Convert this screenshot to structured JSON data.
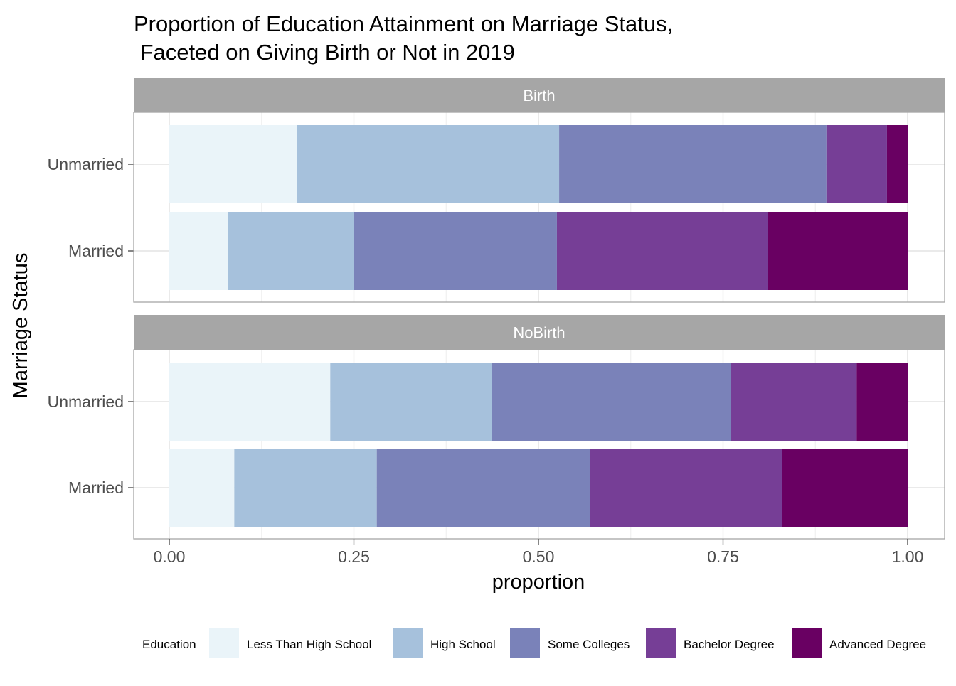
{
  "chart_data": {
    "type": "bar",
    "orientation": "horizontal",
    "stacked": "proportion",
    "title_line1": "Proportion of Education Attainment on Marriage Status,",
    "title_line2": " Faceted on Giving Birth or Not in 2019",
    "xlabel": "proportion",
    "ylabel": "Marriage Status",
    "xlim": [
      0,
      1
    ],
    "x_ticks": [
      "0.00",
      "0.25",
      "0.50",
      "0.75",
      "1.00"
    ],
    "x_tick_values": [
      0,
      0.25,
      0.5,
      0.75,
      1.0
    ],
    "categories": [
      "Unmarried",
      "Married"
    ],
    "grid": true,
    "legend": {
      "title": "Education",
      "placement": "bottom",
      "entries": [
        "Less Than High School",
        "High School",
        "Some Colleges",
        "Bachelor Degree",
        "Advanced Degree"
      ],
      "colors": [
        "#EAF4F9",
        "#A6C1DC",
        "#7A82B9",
        "#763E96",
        "#690062"
      ]
    },
    "facets": [
      {
        "name": "Birth",
        "rows": [
          {
            "category": "Unmarried",
            "values": [
              0.173,
              0.355,
              0.362,
              0.082,
              0.028
            ]
          },
          {
            "category": "Married",
            "values": [
              0.079,
              0.171,
              0.275,
              0.286,
              0.189
            ]
          }
        ]
      },
      {
        "name": "NoBirth",
        "rows": [
          {
            "category": "Unmarried",
            "values": [
              0.218,
              0.219,
              0.324,
              0.17,
              0.069
            ]
          },
          {
            "category": "Married",
            "values": [
              0.088,
              0.193,
              0.289,
              0.26,
              0.17
            ]
          }
        ]
      }
    ]
  }
}
